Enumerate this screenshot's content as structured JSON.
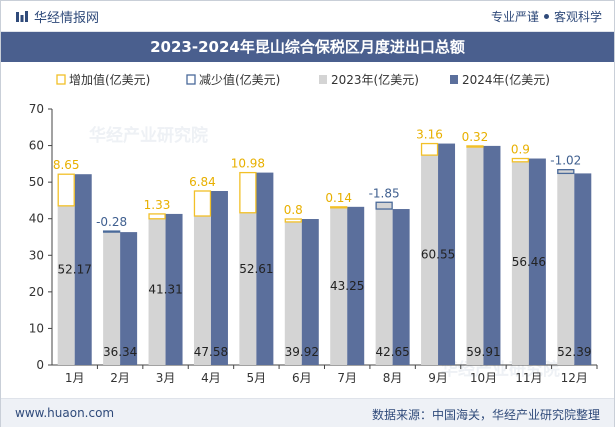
{
  "header": {
    "brand": "华经情报网",
    "tagline_left": "专业严谨",
    "tagline_right": "客观科学"
  },
  "footer": {
    "site": "www.huaon.com",
    "source": "数据来源：中国海关，华经产业研究院整理"
  },
  "colors": {
    "bar_2023": "#d4d4d4",
    "bar_2024": "#5b6f9c",
    "increase_border": "#f2c028",
    "increase_label": "#e8b000",
    "decrease_border": "#4a6a9a",
    "decrease_label": "#3f5f8f",
    "title_bg": "#4a5f8e"
  },
  "chart_data": {
    "type": "bar",
    "title": "2023-2024年昆山综合保税区月度进出口总额",
    "categories": [
      "1月",
      "2月",
      "3月",
      "4月",
      "5月",
      "6月",
      "7月",
      "8月",
      "9月",
      "10月",
      "11月",
      "12月"
    ],
    "series": [
      {
        "name": "2023年(亿美元)",
        "values": [
          43.52,
          36.62,
          39.98,
          40.74,
          41.63,
          39.12,
          43.11,
          44.5,
          57.39,
          59.59,
          55.56,
          53.41
        ]
      },
      {
        "name": "2024年(亿美元)",
        "values": [
          52.17,
          36.34,
          41.31,
          47.58,
          52.61,
          39.92,
          43.25,
          42.65,
          60.55,
          59.91,
          56.46,
          52.39
        ]
      }
    ],
    "change": {
      "increase_name": "增加值(亿美元)",
      "decrease_name": "减少值(亿美元)",
      "values": [
        8.65,
        -0.28,
        1.33,
        6.84,
        10.98,
        0.8,
        0.14,
        -1.85,
        3.16,
        0.32,
        0.9,
        -1.02
      ]
    },
    "value_labels": [
      "52.17",
      "36.34",
      "41.31",
      "47.58",
      "52.61",
      "39.92",
      "43.25",
      "42.65",
      "60.55",
      "59.91",
      "56.46",
      "52.39"
    ],
    "change_labels": [
      "8.65",
      "-0.28",
      "1.33",
      "6.84",
      "10.98",
      "0.8",
      "0.14",
      "-1.85",
      "3.16",
      "0.32",
      "0.9",
      "-1.02"
    ],
    "y_ticks": [
      "0",
      "10",
      "20",
      "30",
      "40",
      "50",
      "60",
      "70"
    ],
    "ylim": [
      0,
      70
    ],
    "grid": false,
    "legend_position": "top"
  }
}
